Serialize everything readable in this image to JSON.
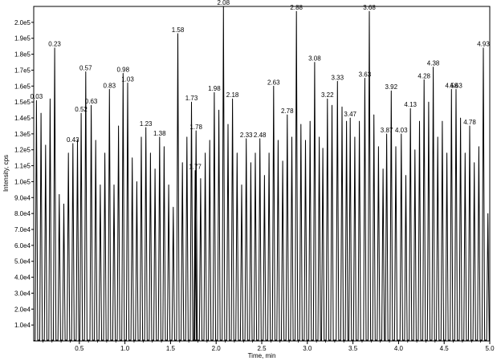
{
  "chart_data": {
    "type": "line",
    "xlabel": "Time, min",
    "ylabel": "Intensity, cps",
    "xlim": [
      0.0,
      5.0
    ],
    "ylim": [
      0,
      210000
    ],
    "x_ticks": [
      0.5,
      1.0,
      1.5,
      2.0,
      2.5,
      3.0,
      3.5,
      4.0,
      4.5,
      5.0
    ],
    "x_tick_labels": [
      "0.5",
      "1.0",
      "1.5",
      "2.0",
      "2.5",
      "3.0",
      "3.5",
      "4.0",
      "4.5",
      "5.0"
    ],
    "y_ticks": [
      10000,
      20000,
      30000,
      40000,
      50000,
      60000,
      70000,
      80000,
      90000,
      100000,
      110000,
      120000,
      130000,
      140000,
      150000,
      160000,
      170000,
      180000,
      190000,
      200000
    ],
    "y_tick_labels": [
      "1.0e4",
      "2.0e4",
      "3.0e4",
      "4.0e4",
      "5.0e4",
      "6.0e4",
      "7.0e4",
      "8.0e4",
      "9.0e4",
      "1.0e5",
      "1.1e5",
      "1.2e5",
      "1.3e5",
      "1.4e5",
      "1.5e5",
      "1.6e5",
      "1.7e5",
      "1.8e5",
      "1.9e5",
      "2.0e5"
    ],
    "labeled_peaks": [
      {
        "label": "0.03",
        "x": 0.03,
        "y": 151000
      },
      {
        "label": "0.23",
        "x": 0.23,
        "y": 184000
      },
      {
        "label": "0.43",
        "x": 0.43,
        "y": 124000
      },
      {
        "label": "0.52",
        "x": 0.52,
        "y": 143000
      },
      {
        "label": "0.57",
        "x": 0.57,
        "y": 169000
      },
      {
        "label": "0.63",
        "x": 0.63,
        "y": 148000
      },
      {
        "label": "0.83",
        "x": 0.83,
        "y": 158000
      },
      {
        "label": "0.98",
        "x": 0.98,
        "y": 168000
      },
      {
        "label": "1.03",
        "x": 1.03,
        "y": 162000
      },
      {
        "label": "1.23",
        "x": 1.23,
        "y": 134000
      },
      {
        "label": "1.38",
        "x": 1.38,
        "y": 128000
      },
      {
        "label": "1.58",
        "x": 1.58,
        "y": 193000
      },
      {
        "label": "1.73",
        "x": 1.73,
        "y": 150000
      },
      {
        "label": "1.78",
        "x": 1.78,
        "y": 132000
      },
      {
        "label": "1.77",
        "x": 1.77,
        "y": 107000
      },
      {
        "label": "1.98",
        "x": 1.98,
        "y": 156000
      },
      {
        "label": "2.08",
        "x": 2.08,
        "y": 210000
      },
      {
        "label": "2.18",
        "x": 2.18,
        "y": 152000
      },
      {
        "label": "2.33",
        "x": 2.33,
        "y": 127000
      },
      {
        "label": "2.48",
        "x": 2.48,
        "y": 127000
      },
      {
        "label": "2.63",
        "x": 2.63,
        "y": 160000
      },
      {
        "label": "2.78",
        "x": 2.78,
        "y": 142000
      },
      {
        "label": "2.88",
        "x": 2.88,
        "y": 207000
      },
      {
        "label": "3.08",
        "x": 3.08,
        "y": 175000
      },
      {
        "label": "3.22",
        "x": 3.22,
        "y": 152000
      },
      {
        "label": "3.33",
        "x": 3.33,
        "y": 163000
      },
      {
        "label": "3.47",
        "x": 3.47,
        "y": 140000
      },
      {
        "label": "3.63",
        "x": 3.63,
        "y": 165000
      },
      {
        "label": "3.68",
        "x": 3.68,
        "y": 207000
      },
      {
        "label": "3.87",
        "x": 3.87,
        "y": 130000
      },
      {
        "label": "3.92",
        "x": 3.92,
        "y": 157000
      },
      {
        "label": "4.03",
        "x": 4.03,
        "y": 130000
      },
      {
        "label": "4.13",
        "x": 4.13,
        "y": 146000
      },
      {
        "label": "4.28",
        "x": 4.28,
        "y": 164000
      },
      {
        "label": "4.38",
        "x": 4.38,
        "y": 172000
      },
      {
        "label": "4.58",
        "x": 4.58,
        "y": 158000
      },
      {
        "label": "4.63",
        "x": 4.63,
        "y": 158000
      },
      {
        "label": "4.78",
        "x": 4.78,
        "y": 135000
      },
      {
        "label": "4.93",
        "x": 4.93,
        "y": 184000
      }
    ],
    "filler_peaks": [
      {
        "x": 0.08,
        "y": 143000
      },
      {
        "x": 0.13,
        "y": 123000
      },
      {
        "x": 0.18,
        "y": 152000
      },
      {
        "x": 0.28,
        "y": 92000
      },
      {
        "x": 0.33,
        "y": 86000
      },
      {
        "x": 0.38,
        "y": 118000
      },
      {
        "x": 0.48,
        "y": 126000
      },
      {
        "x": 0.68,
        "y": 126000
      },
      {
        "x": 0.73,
        "y": 98000
      },
      {
        "x": 0.78,
        "y": 118000
      },
      {
        "x": 0.88,
        "y": 98000
      },
      {
        "x": 0.93,
        "y": 135000
      },
      {
        "x": 1.08,
        "y": 115000
      },
      {
        "x": 1.13,
        "y": 100000
      },
      {
        "x": 1.18,
        "y": 128000
      },
      {
        "x": 1.28,
        "y": 118000
      },
      {
        "x": 1.33,
        "y": 108000
      },
      {
        "x": 1.43,
        "y": 122000
      },
      {
        "x": 1.48,
        "y": 98000
      },
      {
        "x": 1.53,
        "y": 84000
      },
      {
        "x": 1.63,
        "y": 112000
      },
      {
        "x": 1.68,
        "y": 128000
      },
      {
        "x": 1.83,
        "y": 102000
      },
      {
        "x": 1.88,
        "y": 118000
      },
      {
        "x": 1.93,
        "y": 126000
      },
      {
        "x": 2.03,
        "y": 145000
      },
      {
        "x": 2.13,
        "y": 136000
      },
      {
        "x": 2.23,
        "y": 118000
      },
      {
        "x": 2.28,
        "y": 98000
      },
      {
        "x": 2.38,
        "y": 112000
      },
      {
        "x": 2.43,
        "y": 118000
      },
      {
        "x": 2.53,
        "y": 104000
      },
      {
        "x": 2.58,
        "y": 118000
      },
      {
        "x": 2.68,
        "y": 126000
      },
      {
        "x": 2.73,
        "y": 113000
      },
      {
        "x": 2.83,
        "y": 128000
      },
      {
        "x": 2.93,
        "y": 136000
      },
      {
        "x": 2.98,
        "y": 126000
      },
      {
        "x": 3.03,
        "y": 138000
      },
      {
        "x": 3.13,
        "y": 128000
      },
      {
        "x": 3.17,
        "y": 121000
      },
      {
        "x": 3.27,
        "y": 148000
      },
      {
        "x": 3.38,
        "y": 147000
      },
      {
        "x": 3.43,
        "y": 138000
      },
      {
        "x": 3.52,
        "y": 128000
      },
      {
        "x": 3.57,
        "y": 138000
      },
      {
        "x": 3.73,
        "y": 142000
      },
      {
        "x": 3.78,
        "y": 122000
      },
      {
        "x": 3.83,
        "y": 108000
      },
      {
        "x": 3.97,
        "y": 122000
      },
      {
        "x": 4.08,
        "y": 104000
      },
      {
        "x": 4.18,
        "y": 120000
      },
      {
        "x": 4.23,
        "y": 138000
      },
      {
        "x": 4.33,
        "y": 150000
      },
      {
        "x": 4.43,
        "y": 128000
      },
      {
        "x": 4.48,
        "y": 138000
      },
      {
        "x": 4.53,
        "y": 118000
      },
      {
        "x": 4.68,
        "y": 140000
      },
      {
        "x": 4.73,
        "y": 118000
      },
      {
        "x": 4.83,
        "y": 112000
      },
      {
        "x": 4.88,
        "y": 122000
      },
      {
        "x": 4.98,
        "y": 80000
      }
    ]
  }
}
